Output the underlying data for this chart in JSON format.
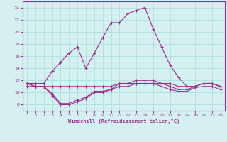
{
  "x": [
    0,
    1,
    2,
    3,
    4,
    5,
    6,
    7,
    8,
    9,
    10,
    11,
    12,
    13,
    14,
    15,
    16,
    17,
    18,
    19,
    20,
    21,
    22,
    23
  ],
  "line_main": [
    11.5,
    11.5,
    11.5,
    13.5,
    15.0,
    16.5,
    17.5,
    14.0,
    16.5,
    19.0,
    21.5,
    21.5,
    23.0,
    23.5,
    24.0,
    20.5,
    17.5,
    14.5,
    12.5,
    11.0,
    11.0,
    11.5,
    11.5,
    11.0
  ],
  "line_flat1": [
    11.5,
    11.0,
    11.0,
    11.0,
    11.0,
    11.0,
    11.0,
    11.0,
    11.0,
    11.0,
    11.0,
    11.5,
    11.5,
    11.5,
    11.5,
    11.5,
    11.5,
    11.5,
    11.0,
    11.0,
    11.0,
    11.5,
    11.5,
    11.0
  ],
  "line_flat2": [
    11.5,
    11.0,
    11.0,
    9.5,
    8.0,
    8.0,
    8.5,
    9.0,
    10.0,
    10.0,
    10.5,
    11.5,
    11.5,
    12.0,
    12.0,
    12.0,
    11.5,
    11.0,
    10.5,
    10.5,
    11.0,
    11.5,
    11.5,
    11.0
  ],
  "line_flat3": [
    11.0,
    11.0,
    11.0,
    9.8,
    8.2,
    8.2,
    8.8,
    9.2,
    10.2,
    10.2,
    10.5,
    11.0,
    11.0,
    11.5,
    11.5,
    11.5,
    11.0,
    10.5,
    10.2,
    10.2,
    10.8,
    11.0,
    11.0,
    10.5
  ],
  "color": "#9b2d8e",
  "bg_color": "#d4f0f0",
  "grid_color": "#aadddd",
  "ylim": [
    7,
    25
  ],
  "xlim": [
    -0.5,
    23.5
  ],
  "yticks": [
    8,
    10,
    12,
    14,
    16,
    18,
    20,
    22,
    24
  ],
  "xticks": [
    0,
    1,
    2,
    3,
    4,
    5,
    6,
    7,
    8,
    9,
    10,
    11,
    12,
    13,
    14,
    15,
    16,
    17,
    18,
    19,
    20,
    21,
    22,
    23
  ],
  "xlabel": "Windchill (Refroidissement éolien,°C)"
}
